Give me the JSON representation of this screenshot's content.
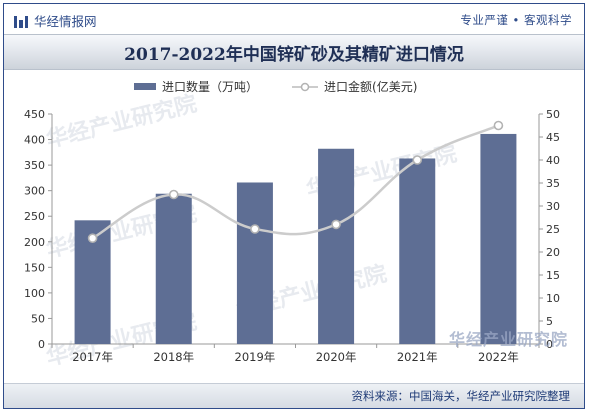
{
  "header": {
    "brand": "华经情报网",
    "slogan": "专业严谨 • 客观科学",
    "title": "2017-2022年中国锌矿砂及其精矿进口情况"
  },
  "legend": {
    "bar_label": "进口数量（万吨）",
    "line_label": "进口金额(亿美元)"
  },
  "footer": {
    "source": "资料来源：中国海关，华经产业研究院整理",
    "watermark": "华经产业研究院"
  },
  "colors": {
    "bar": "#5e6e94",
    "line": "#cccccc",
    "marker_fill": "#ffffff",
    "marker_stroke": "#b3b3b3",
    "accent": "#2f4c8a"
  },
  "chart_data": {
    "type": "bar",
    "title": "2017-2022年中国锌矿砂及其精矿进口情况",
    "categories": [
      "2017年",
      "2018年",
      "2019年",
      "2020年",
      "2021年",
      "2022年"
    ],
    "series": [
      {
        "name": "进口数量（万吨）",
        "type": "bar",
        "axis": "left",
        "values": [
          242,
          294,
          316,
          382,
          363,
          411
        ]
      },
      {
        "name": "进口金额(亿美元)",
        "type": "line",
        "axis": "right",
        "values": [
          23,
          32.5,
          25,
          26,
          40,
          47.5
        ]
      }
    ],
    "ylim_left": [
      0,
      450
    ],
    "yticks_left": [
      0,
      50,
      100,
      150,
      200,
      250,
      300,
      350,
      400,
      450
    ],
    "ylim_right": [
      0,
      50
    ],
    "yticks_right": [
      0,
      5,
      10,
      15,
      20,
      25,
      30,
      35,
      40,
      45,
      50
    ],
    "legend_position": "top-center",
    "grid": false
  }
}
